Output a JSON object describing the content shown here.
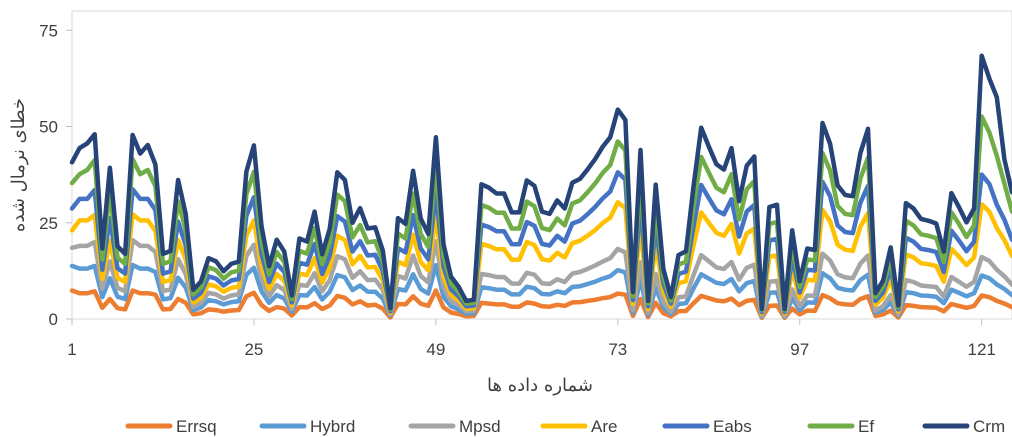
{
  "chart_data": {
    "type": "line",
    "xlabel": "شماره داده ها",
    "ylabel": "خطای نرمال شده",
    "ylim": [
      0,
      80
    ],
    "xlim": [
      1,
      125
    ],
    "yticks": [
      0,
      25,
      50,
      75
    ],
    "xticks": [
      1,
      25,
      49,
      73,
      97,
      121
    ],
    "grid": false,
    "legend_position": "bottom",
    "colors": {
      "Errsq": "#ed7d31",
      "Hybrd": "#5b9bd5",
      "Mpsd": "#a5a5a5",
      "Are": "#ffc000",
      "Eabs": "#4472c4",
      "Ef": "#70ad47",
      "Crm": "#264478"
    },
    "x": [
      1,
      2,
      3,
      4,
      5,
      6,
      7,
      8,
      9,
      10,
      11,
      12,
      13,
      14,
      15,
      16,
      17,
      18,
      19,
      20,
      21,
      22,
      23,
      24,
      25,
      26,
      27,
      28,
      29,
      30,
      31,
      32,
      33,
      34,
      35,
      36,
      37,
      38,
      39,
      40,
      41,
      42,
      43,
      44,
      45,
      46,
      47,
      48,
      49,
      50,
      51,
      52,
      53,
      54,
      55,
      56,
      57,
      58,
      59,
      60,
      61,
      62,
      63,
      64,
      65,
      66,
      67,
      68,
      69,
      70,
      71,
      72,
      73,
      74,
      75,
      76,
      77,
      78,
      79,
      80,
      81,
      82,
      83,
      84,
      85,
      86,
      87,
      88,
      89,
      90,
      91,
      92,
      93,
      94,
      95,
      96,
      97,
      98,
      99,
      100,
      101,
      102,
      103,
      104,
      105,
      106,
      107,
      108,
      109,
      110,
      111,
      112,
      113,
      114,
      115,
      116,
      117,
      118,
      119,
      120,
      121,
      122,
      123,
      124,
      125
    ],
    "series": [
      {
        "name": "Errsq",
        "values": [
          7.4,
          6.7,
          6.7,
          7.2,
          2.9,
          5.2,
          2.8,
          2.5,
          7.4,
          6.7,
          6.7,
          6.3,
          2.5,
          2.6,
          5.2,
          4.2,
          1.2,
          1.5,
          2.5,
          2.3,
          1.9,
          2.2,
          2.3,
          5.9,
          6.8,
          3.6,
          2.1,
          3.1,
          2.7,
          0.9,
          3.1,
          3.0,
          4.1,
          2.6,
          3.5,
          6.0,
          5.5,
          3.8,
          4.6,
          3.5,
          3.7,
          2.7,
          0.4,
          3.9,
          3.8,
          5.9,
          4.0,
          3.4,
          7.4,
          3.0,
          1.7,
          1.3,
          0.7,
          0.8,
          4.2,
          4.0,
          3.8,
          3.8,
          3.2,
          3.2,
          4.3,
          4.0,
          3.3,
          3.2,
          3.7,
          3.4,
          4.3,
          4.4,
          4.7,
          5.0,
          5.4,
          5.7,
          6.6,
          6.3,
          0.8,
          5.2,
          0.5,
          4.2,
          1.5,
          0.7,
          2.0,
          2.1,
          4.1,
          6.0,
          5.4,
          4.8,
          4.6,
          5.3,
          3.6,
          4.7,
          5.0,
          0.3,
          3.4,
          3.5,
          0.3,
          2.7,
          1.2,
          2.2,
          2.1,
          6.2,
          5.4,
          4.1,
          3.8,
          3.7,
          5.2,
          5.9,
          0.8,
          1.2,
          2.2,
          0.4,
          3.6,
          3.4,
          3.1,
          3.0,
          2.9,
          2.0,
          3.9,
          3.4,
          2.9,
          3.4,
          6.1,
          5.7,
          4.7,
          4.0,
          3.1
        ]
      },
      {
        "name": "Hybrd",
        "values": [
          13.8,
          13.1,
          13.1,
          13.8,
          5.7,
          10.6,
          5.8,
          5.2,
          14.0,
          13.1,
          13.1,
          12.2,
          5.1,
          5.4,
          10.7,
          8.2,
          2.3,
          3.0,
          4.9,
          4.6,
          3.8,
          4.4,
          4.6,
          11.5,
          13.3,
          7.2,
          4.2,
          6.2,
          5.3,
          1.9,
          6.2,
          6.1,
          8.3,
          5.1,
          7.1,
          11.4,
          10.8,
          7.5,
          8.7,
          7.1,
          7.1,
          5.3,
          0.9,
          7.8,
          7.4,
          11.6,
          7.8,
          6.6,
          14.0,
          5.8,
          3.3,
          2.5,
          1.4,
          1.5,
          8.2,
          8.0,
          7.6,
          7.6,
          6.4,
          6.4,
          8.4,
          8.0,
          6.5,
          6.4,
          7.2,
          6.7,
          8.3,
          8.5,
          9.1,
          9.7,
          10.5,
          11.1,
          12.7,
          12.1,
          1.6,
          10.3,
          1.1,
          8.2,
          3.1,
          1.3,
          3.9,
          4.1,
          8.0,
          11.6,
          10.5,
          9.4,
          9.1,
          10.4,
          7.2,
          9.3,
          9.9,
          0.6,
          6.8,
          6.9,
          0.6,
          5.4,
          2.3,
          4.3,
          4.2,
          11.9,
          10.6,
          8.1,
          7.6,
          7.4,
          10.1,
          11.5,
          1.6,
          2.4,
          4.3,
          0.9,
          7.0,
          6.7,
          6.1,
          6.0,
          5.8,
          4.1,
          7.6,
          6.8,
          5.9,
          6.7,
          11.3,
          10.6,
          9.0,
          7.8,
          6.2
        ]
      },
      {
        "name": "Mpsd",
        "values": [
          18.5,
          19.0,
          19.0,
          20.0,
          7.9,
          15.0,
          8.1,
          7.2,
          20.5,
          19.0,
          19.0,
          17.4,
          7.3,
          7.6,
          15.5,
          11.7,
          3.2,
          4.2,
          6.8,
          6.4,
          5.3,
          6.1,
          6.4,
          16.4,
          19.3,
          10.3,
          5.9,
          8.8,
          7.5,
          2.6,
          8.9,
          8.6,
          11.9,
          7.2,
          10.1,
          16.3,
          15.5,
          10.7,
          12.4,
          10.1,
          10.2,
          7.6,
          1.2,
          11.2,
          10.5,
          16.5,
          11.2,
          9.5,
          20.2,
          8.3,
          4.7,
          3.6,
          2.0,
          2.1,
          11.7,
          11.4,
          10.9,
          10.9,
          9.2,
          9.2,
          12.0,
          11.5,
          9.3,
          9.1,
          10.3,
          9.6,
          11.8,
          12.2,
          13.0,
          13.9,
          14.9,
          15.8,
          18.2,
          17.3,
          2.3,
          14.7,
          1.6,
          11.7,
          4.4,
          1.9,
          5.6,
          5.9,
          11.5,
          16.6,
          15.0,
          13.4,
          13.0,
          14.8,
          10.2,
          13.3,
          14.1,
          0.8,
          9.7,
          9.9,
          0.8,
          7.7,
          3.3,
          6.1,
          6.0,
          17.0,
          15.2,
          11.6,
          10.8,
          10.6,
          14.4,
          16.5,
          2.2,
          3.4,
          6.2,
          1.2,
          10.1,
          9.6,
          8.7,
          8.5,
          8.3,
          5.8,
          10.9,
          9.7,
          8.4,
          9.6,
          16.1,
          15.1,
          12.8,
          11.1,
          8.9
        ]
      },
      {
        "name": "Are",
        "values": [
          23.0,
          25.6,
          25.6,
          27.0,
          10.4,
          20.4,
          10.7,
          9.6,
          27.2,
          25.6,
          25.6,
          22.9,
          9.6,
          10.1,
          20.5,
          15.5,
          4.3,
          5.5,
          9.0,
          8.5,
          7.1,
          8.1,
          8.4,
          21.7,
          25.6,
          13.7,
          7.8,
          11.7,
          9.9,
          3.5,
          11.8,
          11.4,
          15.8,
          9.5,
          13.3,
          21.6,
          20.5,
          14.2,
          16.4,
          13.4,
          13.5,
          10.1,
          1.6,
          14.9,
          14.0,
          21.9,
          14.8,
          12.6,
          26.8,
          11.0,
          6.2,
          4.8,
          2.7,
          2.8,
          19.5,
          19.0,
          18.1,
          18.1,
          15.4,
          15.4,
          20.0,
          19.2,
          15.5,
          15.2,
          17.2,
          16.0,
          19.7,
          20.3,
          21.6,
          23.1,
          24.9,
          26.3,
          30.3,
          28.8,
          3.9,
          24.5,
          2.6,
          19.5,
          7.3,
          3.2,
          9.3,
          9.8,
          19.2,
          27.7,
          25.0,
          22.4,
          21.6,
          24.7,
          17.0,
          22.2,
          23.5,
          1.4,
          16.2,
          16.5,
          1.4,
          12.8,
          5.5,
          10.2,
          10.0,
          28.3,
          25.4,
          19.3,
          18.0,
          17.7,
          24.0,
          27.5,
          3.7,
          5.6,
          10.4,
          2.0,
          16.8,
          16.0,
          14.5,
          14.2,
          13.8,
          9.7,
          18.2,
          16.2,
          14.0,
          16.0,
          29.8,
          27.9,
          23.6,
          20.5,
          16.4
        ]
      },
      {
        "name": "Eabs",
        "values": [
          28.7,
          31.2,
          31.2,
          33.5,
          12.8,
          26.2,
          13.2,
          11.8,
          33.7,
          31.2,
          31.2,
          28.3,
          11.8,
          12.4,
          25.3,
          19.1,
          5.3,
          6.8,
          11.1,
          10.5,
          8.7,
          10.0,
          10.4,
          26.8,
          31.6,
          16.9,
          9.6,
          14.4,
          12.2,
          4.3,
          14.6,
          14.1,
          19.5,
          11.7,
          16.4,
          26.7,
          25.3,
          17.5,
          20.2,
          16.5,
          16.7,
          12.5,
          2.0,
          18.4,
          17.3,
          27.0,
          18.3,
          15.5,
          33.1,
          13.6,
          7.7,
          5.9,
          3.3,
          3.5,
          24.5,
          23.9,
          22.8,
          22.8,
          19.4,
          19.4,
          25.2,
          24.2,
          19.5,
          19.1,
          21.6,
          20.1,
          24.8,
          25.5,
          27.2,
          29.1,
          31.3,
          33.1,
          38.1,
          36.2,
          4.9,
          30.8,
          3.3,
          24.5,
          9.2,
          4.0,
          11.7,
          12.3,
          24.2,
          34.8,
          31.4,
          28.2,
          27.2,
          31.1,
          21.4,
          27.9,
          29.6,
          1.8,
          20.4,
          20.8,
          1.8,
          16.1,
          6.9,
          12.8,
          12.6,
          35.6,
          31.9,
          24.3,
          22.6,
          22.3,
          30.2,
          34.6,
          4.7,
          7.0,
          13.1,
          2.5,
          21.1,
          20.1,
          18.2,
          17.9,
          17.4,
          12.2,
          22.9,
          20.4,
          17.6,
          20.1,
          37.5,
          35.1,
          29.7,
          25.8,
          20.6
        ]
      },
      {
        "name": "Ef",
        "values": [
          35.3,
          37.6,
          38.7,
          41.3,
          15.5,
          33.1,
          16.0,
          14.3,
          41.5,
          37.6,
          38.7,
          34.5,
          14.3,
          15.0,
          30.6,
          23.1,
          6.4,
          8.2,
          13.4,
          12.7,
          10.5,
          12.1,
          12.6,
          32.4,
          38.2,
          20.4,
          11.6,
          17.4,
          14.8,
          5.2,
          17.7,
          17.0,
          23.6,
          14.2,
          19.8,
          32.3,
          30.6,
          21.2,
          24.4,
          19.9,
          20.2,
          15.1,
          2.4,
          22.2,
          20.9,
          32.6,
          22.1,
          18.7,
          40.0,
          16.4,
          9.3,
          7.1,
          4.0,
          4.2,
          29.6,
          28.9,
          27.6,
          27.6,
          23.5,
          23.5,
          30.5,
          29.3,
          23.6,
          23.1,
          26.1,
          24.3,
          30.0,
          30.8,
          32.9,
          35.2,
          37.9,
          40.0,
          46.1,
          43.8,
          5.9,
          37.2,
          4.0,
          29.6,
          11.1,
          4.8,
          14.1,
          14.9,
          29.3,
          42.1,
          38.0,
          34.1,
          32.9,
          37.6,
          25.9,
          33.7,
          35.8,
          2.2,
          24.7,
          25.2,
          2.2,
          19.5,
          8.3,
          15.5,
          15.2,
          43.1,
          38.6,
          29.4,
          27.3,
          27.0,
          36.5,
          41.9,
          5.7,
          8.5,
          15.8,
          3.0,
          25.5,
          24.3,
          22.0,
          21.6,
          21.0,
          14.8,
          27.7,
          24.7,
          21.3,
          24.3,
          52.6,
          48.5,
          42.4,
          35.2,
          27.9
        ]
      },
      {
        "name": "Crm",
        "values": [
          40.7,
          44.4,
          45.6,
          48.0,
          18.3,
          39.3,
          18.9,
          16.9,
          47.8,
          43.0,
          45.2,
          40.1,
          16.9,
          17.7,
          36.1,
          27.3,
          7.6,
          9.7,
          15.8,
          15.0,
          12.4,
          14.3,
          14.9,
          38.3,
          45.1,
          24.1,
          13.7,
          20.6,
          17.5,
          6.1,
          20.9,
          20.1,
          27.9,
          16.8,
          23.4,
          38.1,
          36.1,
          25.0,
          28.8,
          23.5,
          23.8,
          17.8,
          2.8,
          26.2,
          24.7,
          38.5,
          26.1,
          22.1,
          47.2,
          19.4,
          11.0,
          8.4,
          4.7,
          5.0,
          35.0,
          34.1,
          32.6,
          32.6,
          27.7,
          27.7,
          36.0,
          34.6,
          27.9,
          27.3,
          30.8,
          28.7,
          35.4,
          36.4,
          38.8,
          41.5,
          44.7,
          47.2,
          54.4,
          51.7,
          7.0,
          43.9,
          4.7,
          34.9,
          13.1,
          5.7,
          16.6,
          17.6,
          34.6,
          49.7,
          44.8,
          40.2,
          38.8,
          44.4,
          30.6,
          39.8,
          42.2,
          2.6,
          29.1,
          29.7,
          2.6,
          23.0,
          9.8,
          18.3,
          17.9,
          50.9,
          45.5,
          34.7,
          32.2,
          31.9,
          43.1,
          49.4,
          6.7,
          10.0,
          18.6,
          3.5,
          30.1,
          28.7,
          26.0,
          25.5,
          24.8,
          17.5,
          32.7,
          29.1,
          25.1,
          28.7,
          68.4,
          62.5,
          57.6,
          41.5,
          32.9
        ]
      }
    ]
  }
}
